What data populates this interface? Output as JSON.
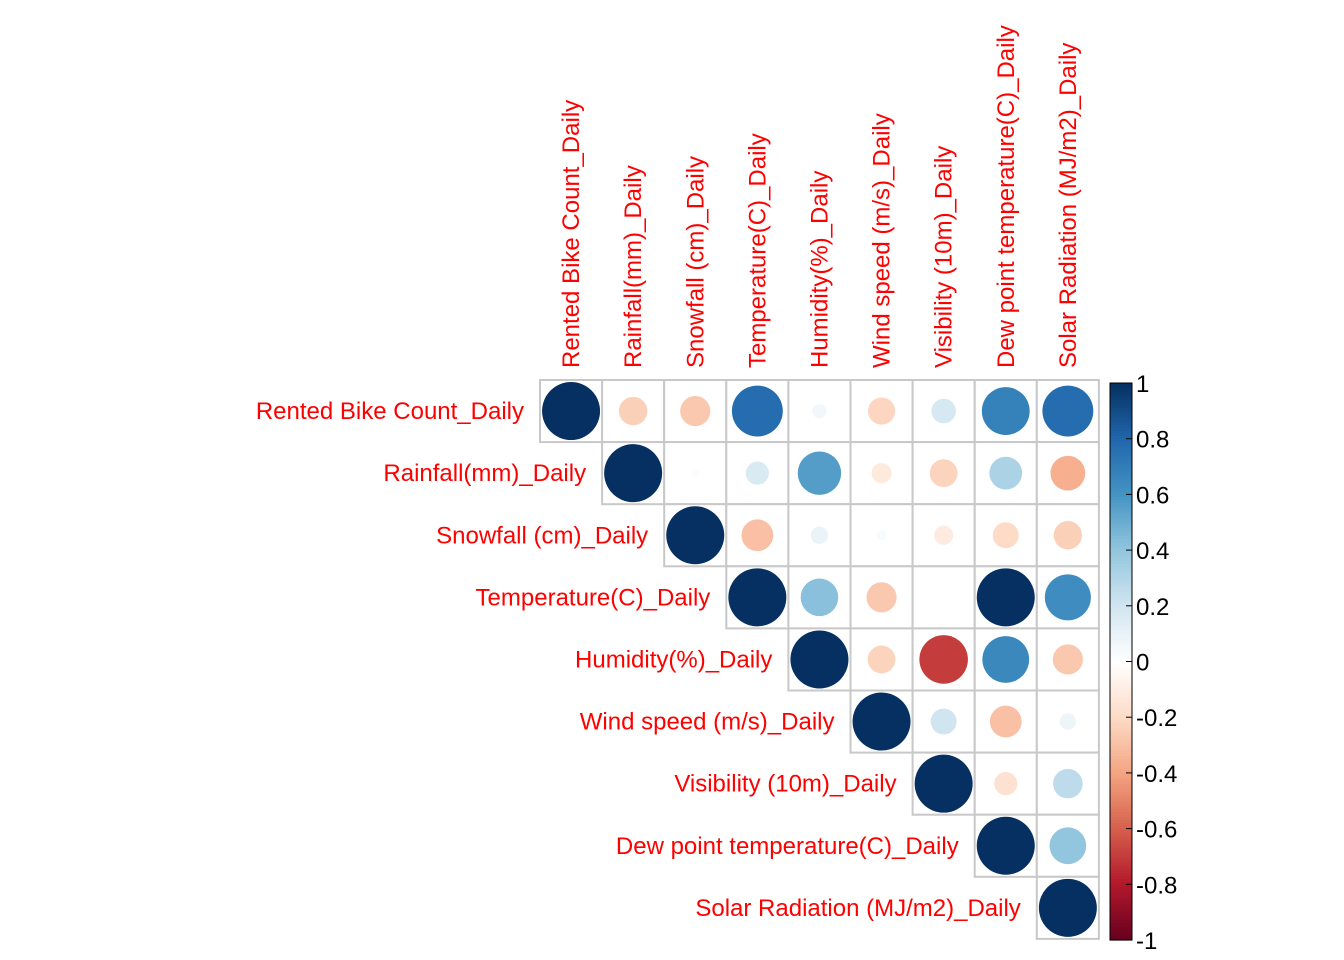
{
  "chart_data": {
    "type": "heatmap",
    "style": "corrplot-upper-circles",
    "variables": [
      "Rented Bike Count_Daily",
      "Rainfall(mm)_Daily",
      "Snowfall (cm)_Daily",
      "Temperature(C)_Daily",
      "Humidity(%)_Daily",
      "Wind speed (m/s)_Daily",
      "Visibility (10m)_Daily",
      "Dew point temperature(C)_Daily",
      "Solar Radiation (MJ/m2)_Daily"
    ],
    "correlations": [
      [
        1.0,
        -0.24,
        -0.27,
        0.77,
        0.06,
        -0.22,
        0.18,
        0.68,
        0.77
      ],
      [
        null,
        1.0,
        0.02,
        0.16,
        0.56,
        -0.12,
        -0.23,
        0.32,
        -0.36
      ],
      [
        null,
        null,
        1.0,
        -0.3,
        0.09,
        0.03,
        -0.11,
        -0.2,
        -0.24
      ],
      [
        null,
        null,
        null,
        1.0,
        0.42,
        -0.27,
        0.0,
        1.0,
        0.63
      ],
      [
        null,
        null,
        null,
        null,
        1.0,
        -0.23,
        -0.7,
        0.65,
        -0.27
      ],
      [
        null,
        null,
        null,
        null,
        null,
        1.0,
        0.2,
        -0.3,
        0.08
      ],
      [
        null,
        null,
        null,
        null,
        null,
        null,
        1.0,
        -0.16,
        0.26
      ],
      [
        null,
        null,
        null,
        null,
        null,
        null,
        null,
        1.0,
        0.4
      ],
      [
        null,
        null,
        null,
        null,
        null,
        null,
        null,
        null,
        1.0
      ]
    ],
    "colorbar": {
      "min": -1,
      "max": 1,
      "ticks": [
        "1",
        "0.8",
        "0.6",
        "0.4",
        "0.2",
        "0",
        "-0.2",
        "-0.4",
        "-0.6",
        "-0.8",
        "-1"
      ]
    },
    "label_color": "#FF0000",
    "grid_color": "#C8C8C8",
    "palette": [
      "#67001F",
      "#B2182B",
      "#D6604D",
      "#F4A582",
      "#FDDBC7",
      "#FFFFFF",
      "#D1E5F0",
      "#92C5DE",
      "#4393C3",
      "#2166AC",
      "#053061"
    ]
  }
}
